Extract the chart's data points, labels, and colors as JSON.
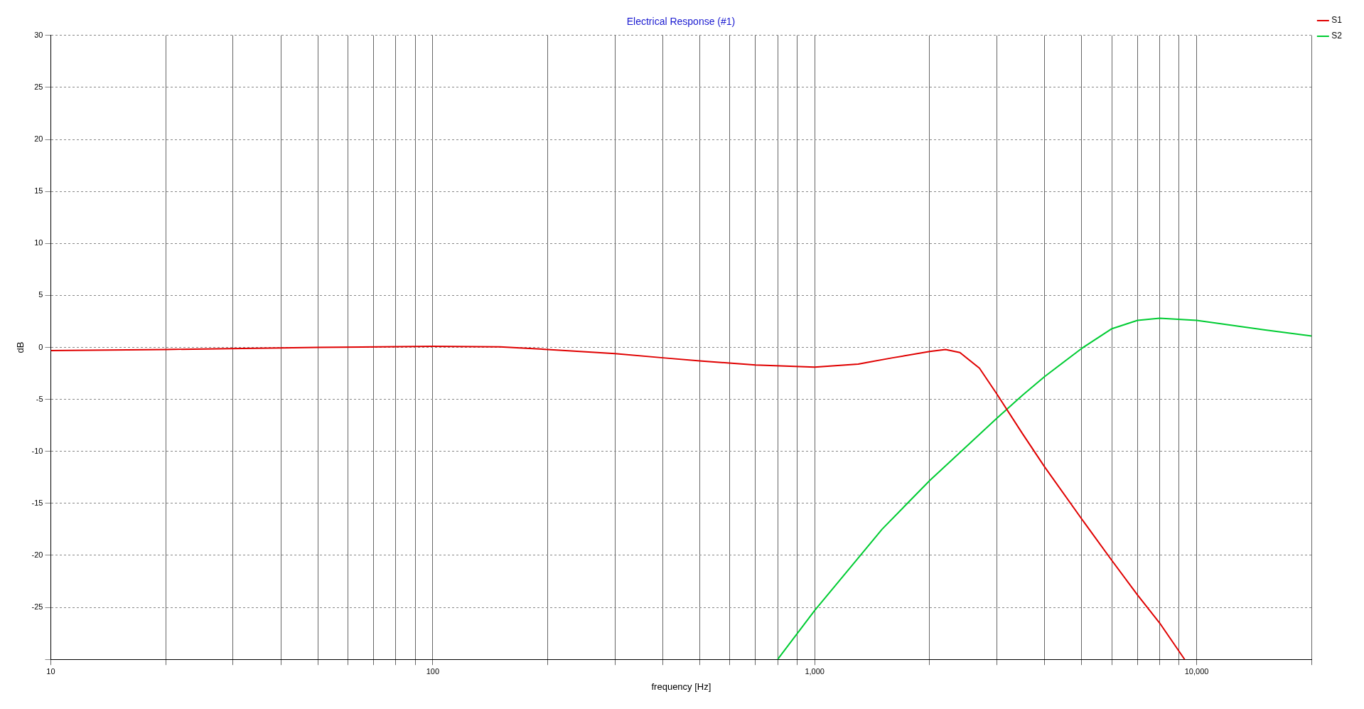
{
  "chart_data": {
    "type": "line",
    "title": "Electrical Response (#1)",
    "xlabel": "frequency [Hz]",
    "ylabel": "dB",
    "log": "x",
    "grid": true,
    "legend": "top right",
    "marker": "none",
    "line_style": "solid",
    "xlim": [
      10,
      20000
    ],
    "ylim": [
      -30,
      30
    ],
    "xticks": [
      10,
      {
        "value": 20,
        "label": null
      },
      {
        "value": 30,
        "label": null
      },
      {
        "value": 40,
        "label": null
      },
      {
        "value": 50,
        "label": null
      },
      {
        "value": 60,
        "label": null
      },
      {
        "value": 70,
        "label": null
      },
      {
        "value": 80,
        "label": null
      },
      {
        "value": 90,
        "label": null
      },
      100,
      {
        "value": 200,
        "label": null
      },
      {
        "value": 300,
        "label": null
      },
      {
        "value": 400,
        "label": null
      },
      {
        "value": 500,
        "label": null
      },
      {
        "value": 600,
        "label": null
      },
      {
        "value": 700,
        "label": null
      },
      {
        "value": 800,
        "label": null
      },
      {
        "value": 900,
        "label": null
      },
      {
        "value": 1000,
        "label": "1,000"
      },
      {
        "value": 2000,
        "label": null
      },
      {
        "value": 3000,
        "label": null
      },
      {
        "value": 4000,
        "label": null
      },
      {
        "value": 5000,
        "label": null
      },
      {
        "value": 6000,
        "label": null
      },
      {
        "value": 7000,
        "label": null
      },
      {
        "value": 8000,
        "label": null
      },
      {
        "value": 9000,
        "label": null
      },
      {
        "value": 10000,
        "label": "10,000"
      },
      {
        "value": 20000,
        "label": null
      }
    ],
    "yticks": [
      {
        "value": -30,
        "label": null
      },
      -25,
      -20,
      -15,
      -10,
      -5,
      0,
      5,
      10,
      15,
      20,
      25,
      30
    ],
    "series": [
      {
        "name": "S1",
        "color": "#e00000",
        "x": [
          10,
          20,
          50,
          100,
          150,
          200,
          300,
          400,
          500,
          700,
          1000,
          1300,
          1600,
          2000,
          2200,
          2400,
          2700,
          3000,
          3500,
          4000,
          5000,
          6000,
          7000,
          8000,
          9300
        ],
        "values": [
          -0.3,
          -0.2,
          0,
          0.1,
          0.05,
          -0.2,
          -0.6,
          -1,
          -1.3,
          -1.7,
          -1.9,
          -1.6,
          -1,
          -0.4,
          -0.2,
          -0.5,
          -2,
          -4.5,
          -8.3,
          -11.5,
          -16.5,
          -20.5,
          -23.8,
          -26.5,
          -30
        ]
      },
      {
        "name": "S2",
        "color": "#00cc33",
        "x": [
          800,
          1000,
          1500,
          2000,
          2500,
          3000,
          3500,
          4000,
          5000,
          6000,
          7000,
          8000,
          10000,
          15000,
          20000
        ],
        "values": [
          -30,
          -25.3,
          -17.5,
          -12.8,
          -9.5,
          -6.8,
          -4.6,
          -2.8,
          -0.1,
          1.8,
          2.6,
          2.8,
          2.6,
          1.7,
          1.1
        ]
      }
    ]
  }
}
